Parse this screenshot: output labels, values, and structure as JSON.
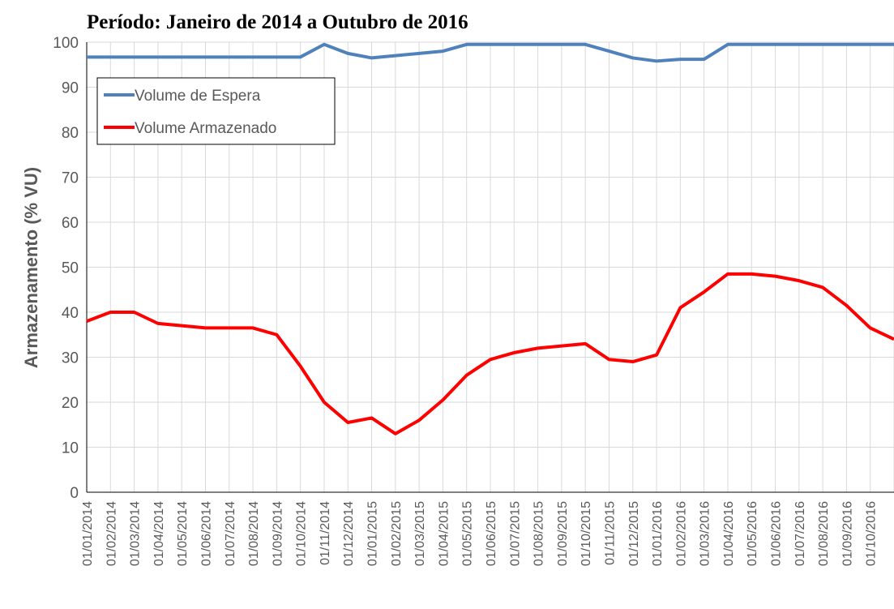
{
  "chart_data": {
    "type": "line",
    "title": "Período: Janeiro de 2014 a Outubro de 2016",
    "y_label": "Armazenamento (% VU)",
    "categories": [
      "01/01/2014",
      "01/02/2014",
      "01/03/2014",
      "01/04/2014",
      "01/05/2014",
      "01/06/2014",
      "01/07/2014",
      "01/08/2014",
      "01/09/2014",
      "01/10/2014",
      "01/11/2014",
      "01/12/2014",
      "01/01/2015",
      "01/02/2015",
      "01/03/2015",
      "01/04/2015",
      "01/05/2015",
      "01/06/2015",
      "01/07/2015",
      "01/08/2015",
      "01/09/2015",
      "01/10/2015",
      "01/11/2015",
      "01/12/2015",
      "01/01/2016",
      "01/02/2016",
      "01/03/2016",
      "01/04/2016",
      "01/05/2016",
      "01/06/2016",
      "01/07/2016",
      "01/08/2016",
      "01/09/2016",
      "01/10/2016",
      null
    ],
    "series": [
      {
        "name": "Volume de Espera",
        "color": "#4f81bd",
        "values": [
          96.7,
          96.7,
          96.7,
          96.7,
          96.7,
          96.7,
          96.7,
          96.7,
          96.7,
          96.7,
          99.5,
          97.5,
          96.5,
          97,
          97.5,
          98,
          99.5,
          99.5,
          99.5,
          99.5,
          99.5,
          99.5,
          98,
          96.5,
          95.8,
          96.2,
          96.2,
          99.5,
          99.5,
          99.5,
          99.5,
          99.5,
          99.5,
          99.5,
          99.5
        ]
      },
      {
        "name": "Volume Armazenado",
        "color": "#ff0000",
        "values": [
          38,
          40,
          40,
          37.5,
          37,
          36.5,
          36.5,
          36.5,
          35,
          28,
          20,
          15.5,
          16.5,
          13,
          16,
          20.5,
          26,
          29.5,
          31,
          32,
          32.5,
          33,
          29.5,
          29,
          30.5,
          41,
          44.5,
          48.5,
          48.5,
          48,
          47,
          45.5,
          41.5,
          36.5,
          34
        ]
      }
    ],
    "ylim": [
      0,
      100
    ],
    "yticks": [
      0,
      10,
      20,
      30,
      40,
      50,
      60,
      70,
      80,
      90,
      100
    ],
    "grid": true,
    "legend": "upper left"
  }
}
